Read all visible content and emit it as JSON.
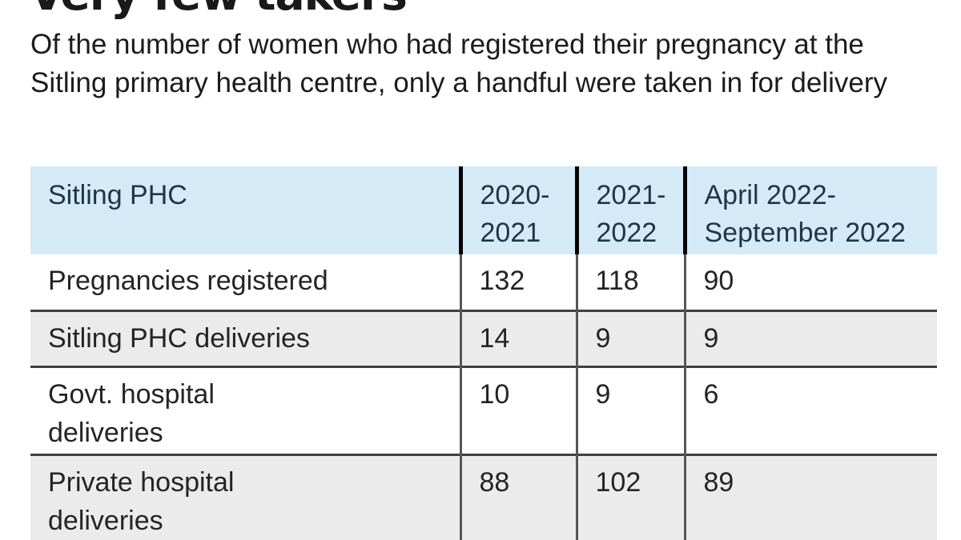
{
  "title": "Very few takers",
  "subtitle": "Of the number of women who had registered their pregnancy at the Sitling primary health centre, only a handful were taken in for delivery",
  "table": {
    "columns": [
      "Sitling PHC",
      "2020-2021",
      "2021-2022",
      "April 2022-September 2022"
    ],
    "rows": [
      {
        "label": "Pregnancies registered",
        "values": [
          "132",
          "118",
          "90"
        ]
      },
      {
        "label": "Sitling PHC deliveries",
        "values": [
          "14",
          "9",
          "9"
        ]
      },
      {
        "label": "Govt. hospital\ndeliveries",
        "values": [
          "10",
          "9",
          "6"
        ]
      },
      {
        "label": "Private hospital\ndeliveries",
        "values": [
          "88",
          "102",
          "89"
        ]
      }
    ]
  },
  "colors": {
    "header_bg": "#d5eaf7",
    "header_text": "#1d3648",
    "alt_row_bg": "#ebebec",
    "row_divider": "#3f3f3f",
    "header_col_divider": "#050505",
    "body_col_divider": "#55565a"
  },
  "chart_data": {
    "type": "table",
    "title": "Very few takers",
    "subtitle": "Of the number of women who had registered their pregnancy at the Sitling primary health centre, only a handful were taken in for delivery",
    "categories": [
      "2020-2021",
      "2021-2022",
      "April 2022-September 2022"
    ],
    "series": [
      {
        "name": "Pregnancies registered",
        "values": [
          132,
          118,
          90
        ]
      },
      {
        "name": "Sitling PHC deliveries",
        "values": [
          14,
          9,
          9
        ]
      },
      {
        "name": "Govt. hospital deliveries",
        "values": [
          10,
          9,
          6
        ]
      },
      {
        "name": "Private hospital deliveries",
        "values": [
          88,
          102,
          89
        ]
      }
    ]
  }
}
